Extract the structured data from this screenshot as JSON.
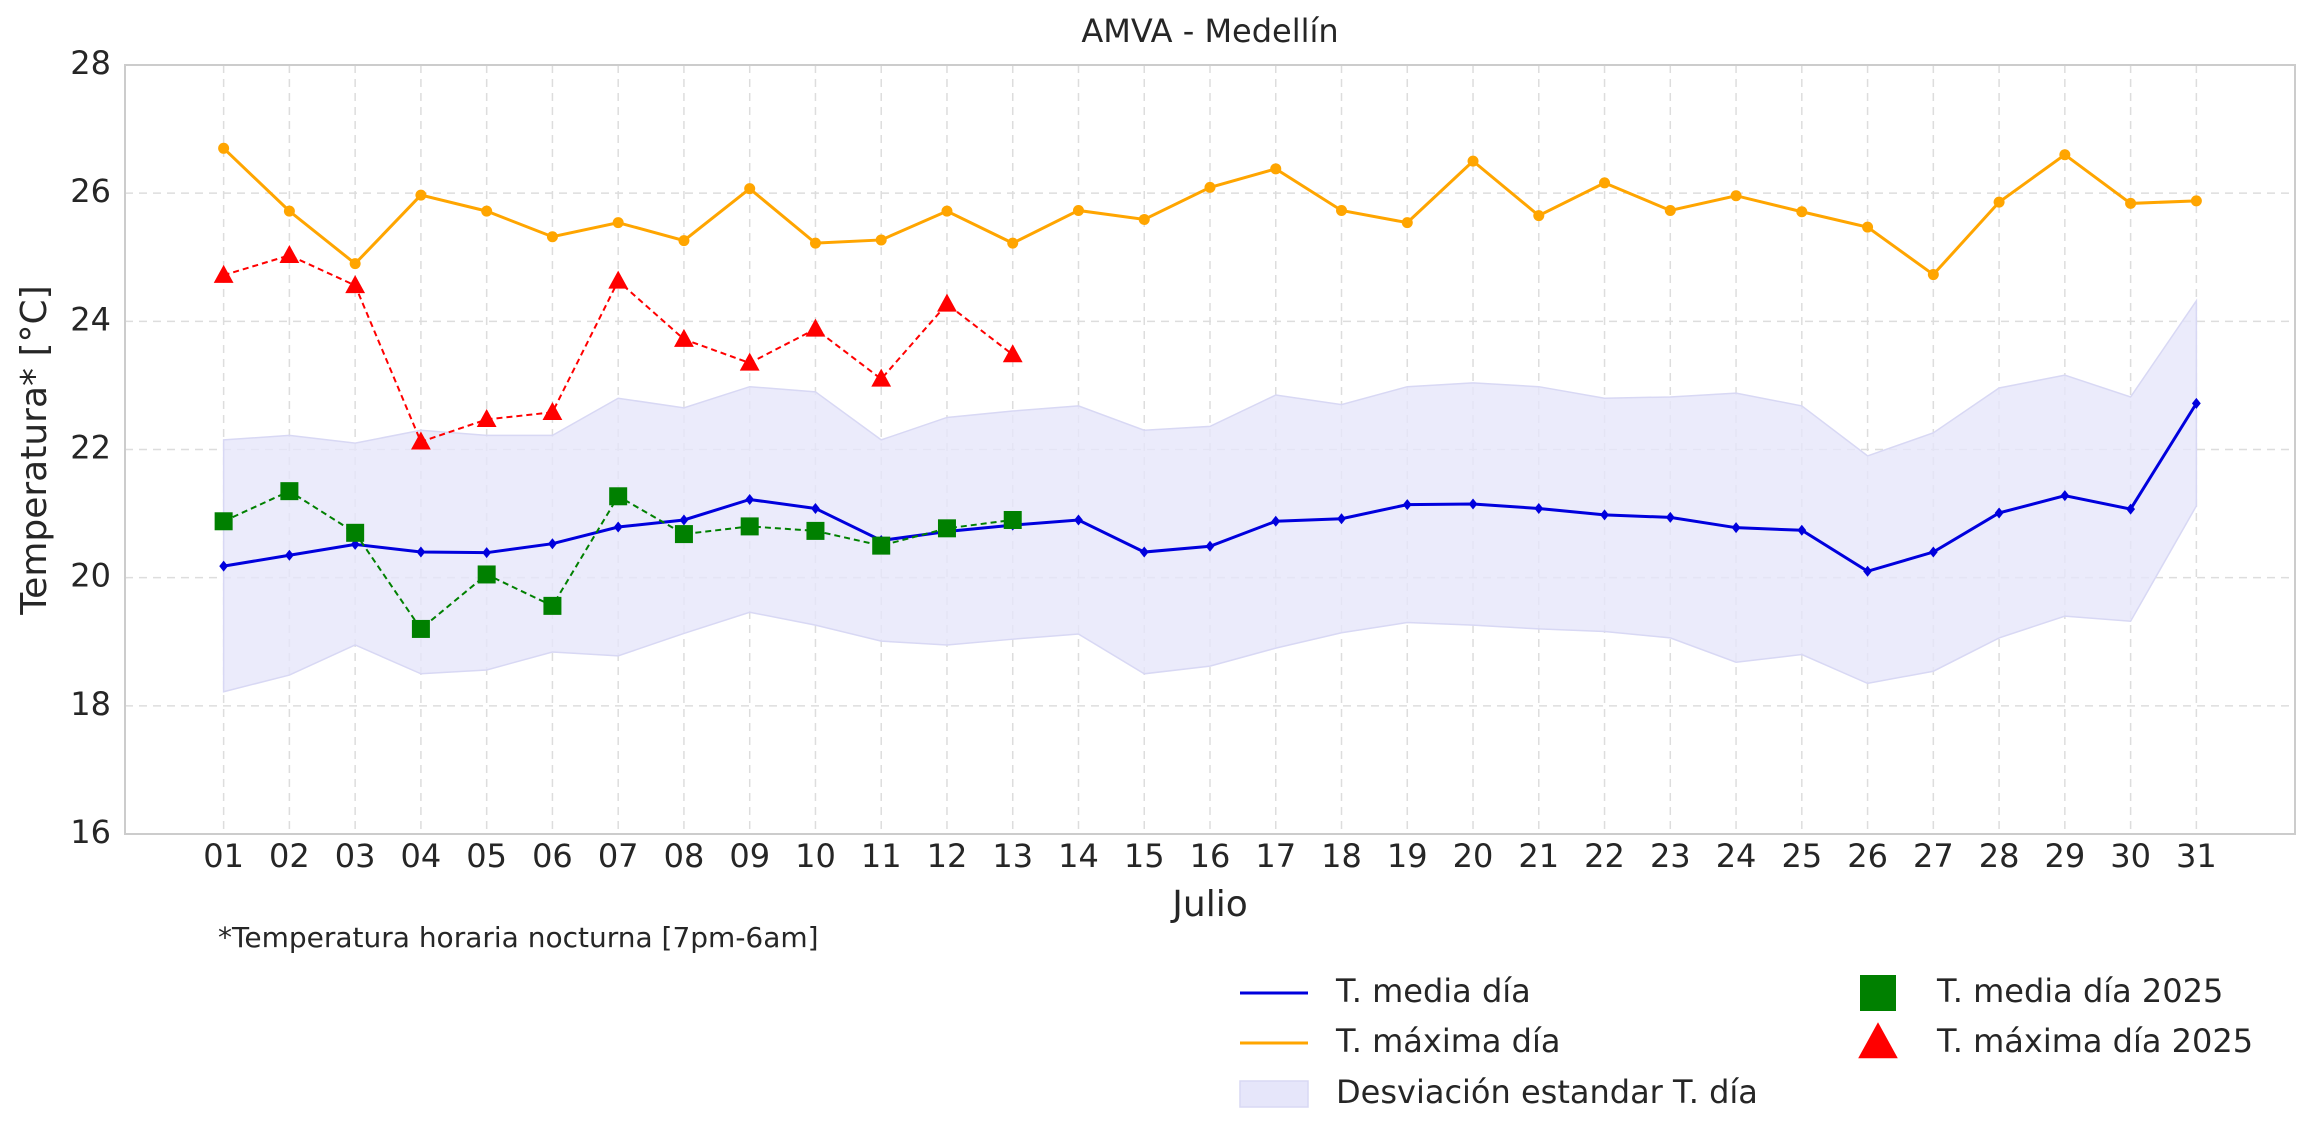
{
  "chart_data": {
    "type": "line",
    "title": "AMVA - Medellín",
    "xlabel": "Julio",
    "ylabel": "Temperatura* [°C]",
    "annotation": "*Temperatura horaria nocturna [7pm-6am]",
    "categories": [
      "01",
      "02",
      "03",
      "04",
      "05",
      "06",
      "07",
      "08",
      "09",
      "10",
      "11",
      "12",
      "13",
      "14",
      "15",
      "16",
      "17",
      "18",
      "19",
      "20",
      "21",
      "22",
      "23",
      "24",
      "25",
      "26",
      "27",
      "28",
      "29",
      "30",
      "31"
    ],
    "ylim": [
      16,
      28
    ],
    "yticks": [
      16,
      18,
      20,
      22,
      24,
      26,
      28
    ],
    "grid": true,
    "series": [
      {
        "name": "T. media día",
        "color": "#0000dd",
        "marker": "diamond",
        "style": "solid",
        "values": [
          20.18,
          20.35,
          20.52,
          20.4,
          20.39,
          20.53,
          20.79,
          20.9,
          21.22,
          21.08,
          20.58,
          20.72,
          20.82,
          20.9,
          20.4,
          20.49,
          20.88,
          20.92,
          21.14,
          21.15,
          21.08,
          20.98,
          20.94,
          20.78,
          20.74,
          20.1,
          20.4,
          21.01,
          21.28,
          21.07,
          22.72
        ]
      },
      {
        "name": "T. máxima día",
        "color": "#ffa500",
        "marker": "circle",
        "style": "solid",
        "values": [
          26.7,
          25.72,
          24.9,
          25.97,
          25.72,
          25.32,
          25.54,
          25.26,
          26.07,
          25.22,
          25.27,
          25.72,
          25.22,
          25.73,
          25.59,
          26.09,
          26.38,
          25.73,
          25.54,
          26.5,
          25.65,
          26.16,
          25.73,
          25.96,
          25.71,
          25.47,
          24.73,
          25.86,
          26.6,
          25.84,
          25.88
        ]
      },
      {
        "name": "Desviación estandar T. día",
        "color": "#e6e6fa",
        "kind": "band",
        "upper": [
          22.15,
          22.22,
          22.1,
          22.3,
          22.22,
          22.22,
          22.8,
          22.65,
          22.98,
          22.9,
          22.15,
          22.5,
          22.6,
          22.68,
          22.3,
          22.36,
          22.85,
          22.7,
          22.98,
          23.04,
          22.98,
          22.8,
          22.82,
          22.88,
          22.68,
          21.9,
          22.26,
          22.96,
          23.16,
          22.82,
          24.32
        ],
        "lower": [
          18.22,
          18.48,
          18.95,
          18.5,
          18.56,
          18.84,
          18.78,
          19.13,
          19.46,
          19.26,
          19.01,
          18.95,
          19.04,
          19.12,
          18.5,
          18.62,
          18.9,
          19.14,
          19.3,
          19.26,
          19.2,
          19.16,
          19.06,
          18.68,
          18.8,
          18.35,
          18.54,
          19.06,
          19.4,
          19.32,
          21.12
        ]
      },
      {
        "name": "T. media día 2025",
        "color": "#008000",
        "marker": "square",
        "style": "dashed",
        "values": [
          20.88,
          21.35,
          20.7,
          19.2,
          20.05,
          19.56,
          21.27,
          20.68,
          20.8,
          20.73,
          20.5,
          20.77,
          20.9,
          null,
          null,
          null,
          null,
          null,
          null,
          null,
          null,
          null,
          null,
          null,
          null,
          null,
          null,
          null,
          null,
          null,
          null
        ]
      },
      {
        "name": "T. máxima día 2025",
        "color": "#ff0000",
        "marker": "triangle",
        "style": "dashed",
        "values": [
          24.72,
          25.03,
          24.56,
          22.12,
          22.47,
          22.58,
          24.63,
          23.72,
          23.35,
          23.88,
          23.1,
          24.27,
          23.48,
          null,
          null,
          null,
          null,
          null,
          null,
          null,
          null,
          null,
          null,
          null,
          null,
          null,
          null,
          null,
          null,
          null,
          null
        ]
      }
    ]
  }
}
